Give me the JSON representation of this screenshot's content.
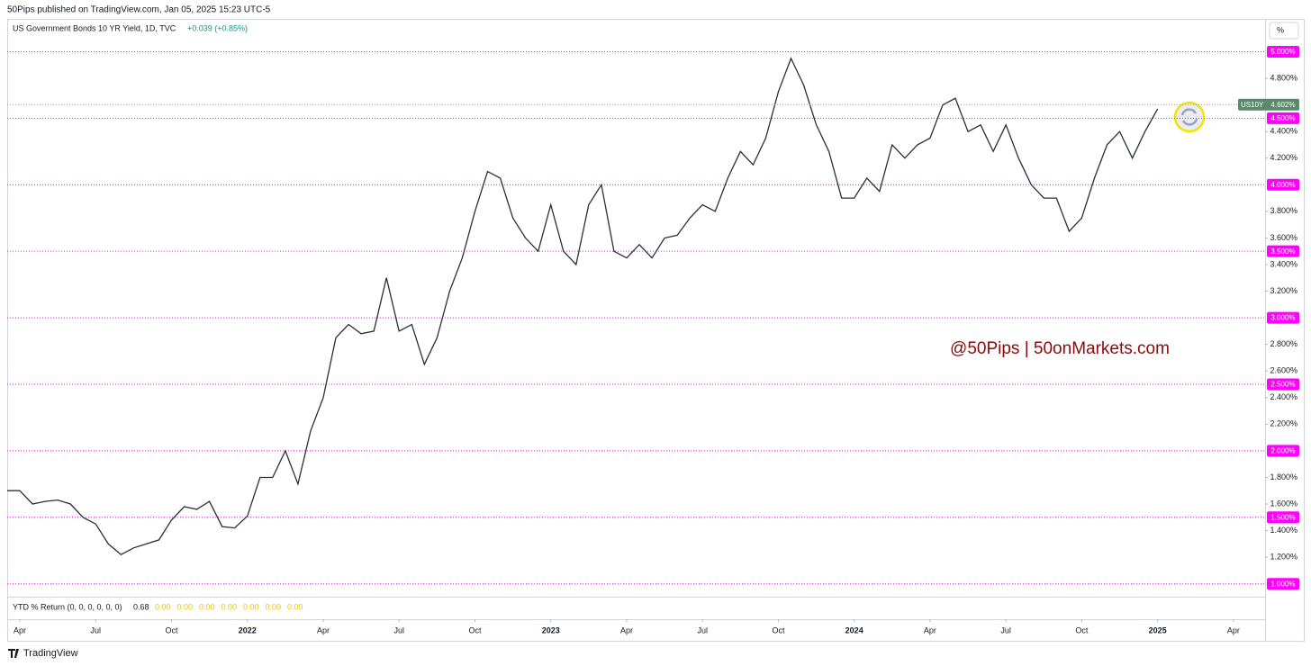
{
  "header": {
    "published": "50Pips published on TradingView.com, Jan 05, 2025 15:23 UTC-5"
  },
  "chart_data": {
    "type": "line",
    "title": "US Government Bonds 10 YR Yield, 1D, TVC",
    "change": "+0.039 (+0.85%)",
    "unit_label": "%",
    "color": "#2a2e39",
    "values": [
      1.7,
      1.7,
      1.6,
      1.62,
      1.63,
      1.6,
      1.5,
      1.45,
      1.3,
      1.22,
      1.27,
      1.3,
      1.33,
      1.48,
      1.58,
      1.56,
      1.62,
      1.43,
      1.42,
      1.51,
      1.8,
      1.8,
      2.0,
      1.75,
      2.15,
      2.4,
      2.85,
      2.95,
      2.88,
      2.9,
      3.3,
      2.9,
      2.95,
      2.65,
      2.85,
      3.2,
      3.45,
      3.8,
      4.1,
      4.05,
      3.75,
      3.6,
      3.5,
      3.85,
      3.5,
      3.4,
      3.85,
      4.0,
      3.5,
      3.45,
      3.55,
      3.45,
      3.6,
      3.62,
      3.75,
      3.85,
      3.8,
      4.05,
      4.25,
      4.15,
      4.35,
      4.7,
      4.95,
      4.75,
      4.45,
      4.25,
      3.9,
      3.9,
      4.05,
      3.95,
      4.3,
      4.2,
      4.3,
      4.35,
      4.6,
      4.65,
      4.4,
      4.45,
      4.25,
      4.45,
      4.2,
      4.0,
      3.9,
      3.9,
      3.65,
      3.75,
      4.05,
      4.3,
      4.4,
      4.2,
      4.4,
      4.57
    ],
    "xlim": [
      0,
      99.5
    ],
    "xticks": [
      {
        "value": 1,
        "label": "Apr"
      },
      {
        "value": 7,
        "label": "Jul"
      },
      {
        "value": 13,
        "label": "Oct"
      },
      {
        "value": 19,
        "label": "2022"
      },
      {
        "value": 25,
        "label": "Apr"
      },
      {
        "value": 31,
        "label": "Jul"
      },
      {
        "value": 37,
        "label": "Oct"
      },
      {
        "value": 43,
        "label": "2023"
      },
      {
        "value": 49,
        "label": "Apr"
      },
      {
        "value": 55,
        "label": "Jul"
      },
      {
        "value": 61,
        "label": "Oct"
      },
      {
        "value": 67,
        "label": "2024"
      },
      {
        "value": 73,
        "label": "Apr"
      },
      {
        "value": 79,
        "label": "Jul"
      },
      {
        "value": 85,
        "label": "Oct"
      },
      {
        "value": 91,
        "label": "2025"
      },
      {
        "value": 97,
        "label": "Apr"
      }
    ],
    "ylim": [
      0.91,
      5.24
    ],
    "yticks": [
      {
        "value": 4.8,
        "label": "4.800%"
      },
      {
        "value": 4.4,
        "label": "4.400%"
      },
      {
        "value": 4.2,
        "label": "4.200%"
      },
      {
        "value": 3.8,
        "label": "3.800%"
      },
      {
        "value": 3.6,
        "label": "3.600%"
      },
      {
        "value": 3.4,
        "label": "3.400%"
      },
      {
        "value": 3.2,
        "label": "3.200%"
      },
      {
        "value": 2.8,
        "label": "2.800%"
      },
      {
        "value": 2.6,
        "label": "2.600%"
      },
      {
        "value": 2.4,
        "label": "2.400%"
      },
      {
        "value": 2.2,
        "label": "2.200%"
      },
      {
        "value": 1.8,
        "label": "1.800%"
      },
      {
        "value": 1.6,
        "label": "1.600%"
      },
      {
        "value": 1.4,
        "label": "1.400%"
      },
      {
        "value": 1.2,
        "label": "1.200%"
      }
    ],
    "grid": false,
    "level_color": "#ff00ff",
    "levels": [
      {
        "value": 5,
        "label": "5.000%"
      },
      {
        "value": 4.5,
        "label": "4.500%"
      },
      {
        "value": 4,
        "label": "4.000%"
      },
      {
        "value": 3.5,
        "label": "3.500%"
      },
      {
        "value": 3,
        "label": "3.000%"
      },
      {
        "value": 2.5,
        "label": "2.500%"
      },
      {
        "value": 2,
        "label": "2.000%"
      },
      {
        "value": 1.5,
        "label": "1.500%"
      },
      {
        "value": 1,
        "label": "1.000%"
      }
    ],
    "last_price": {
      "symbol": "US10Y",
      "value": 4.602,
      "label": "4.602%",
      "color": "#5a8a6a"
    },
    "watermark": "@50Pips | 50onMarkets.com",
    "indicator": {
      "name": "YTD % Return (0, 0, 0, 0, 0, 0)",
      "values": [
        "0.68",
        "0.00",
        "0.00",
        "0.00",
        "0.00",
        "0.00",
        "0.00",
        "0.00"
      ]
    }
  },
  "footer": {
    "brand": "TradingView"
  }
}
